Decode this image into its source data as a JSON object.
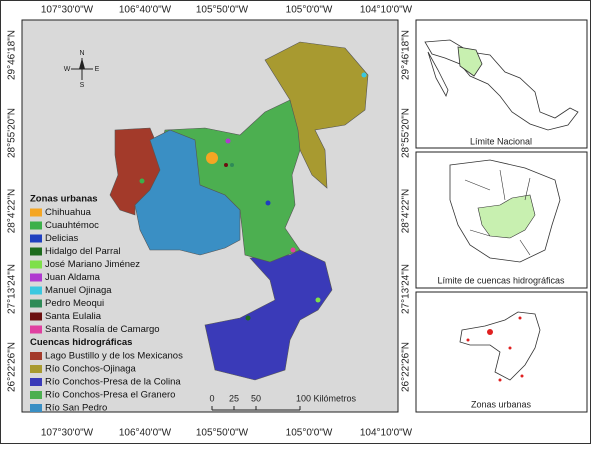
{
  "map": {
    "lon_labels": [
      "107°30'0\"W",
      "106°40'0\"W",
      "105°50'0\"W",
      "105°0'0\"W",
      "104°10'0\"W"
    ],
    "lat_labels": [
      "29°46'18\"N",
      "28°55'20\"N",
      "28°4'22\"N",
      "27°13'24\"N",
      "26°22'26\"N"
    ],
    "north_arrow": [
      "N",
      "S",
      "E",
      "W"
    ],
    "legend": [
      {
        "title": "Zonas urbanas",
        "items": [
          {
            "label": "Chihuahua",
            "color": "#f5a623"
          },
          {
            "label": "Cuauhtémoc",
            "color": "#3cb04a"
          },
          {
            "label": "Delicias",
            "color": "#1f3fbf"
          },
          {
            "label": "Hidalgo del Parral",
            "color": "#1e6b1e"
          },
          {
            "label": "José Mariano Jiménez",
            "color": "#7ee04a"
          },
          {
            "label": "Juan Aldama",
            "color": "#b03ad0"
          },
          {
            "label": "Manuel Ojinaga",
            "color": "#3ac8e0"
          },
          {
            "label": "Pedro Meoqui",
            "color": "#2e8b57"
          },
          {
            "label": "Santa Eulalia",
            "color": "#6b1010"
          },
          {
            "label": "Santa Rosalía de Camargo",
            "color": "#e040a0"
          }
        ]
      },
      {
        "title": "Cuencas hidrográficas",
        "items": [
          {
            "label": "Lago Bustillo y de los Mexicanos",
            "color": "#a33a2a"
          },
          {
            "label": "Río Conchos-Ojinaga",
            "color": "#a89a30"
          },
          {
            "label": "Río Conchos-Presa de la Colina",
            "color": "#3a3ab8"
          },
          {
            "label": "Río Conchos-Presa el Granero",
            "color": "#4caf50"
          },
          {
            "label": "Río San Pedro",
            "color": "#3a8fc4"
          }
        ]
      }
    ],
    "scale": [
      "0",
      "25",
      "50",
      "100 Kilómetros"
    ],
    "insets": [
      "Límite Nacional",
      "Límite de cuencas hidrográficas",
      "Zonas urbanas"
    ]
  }
}
